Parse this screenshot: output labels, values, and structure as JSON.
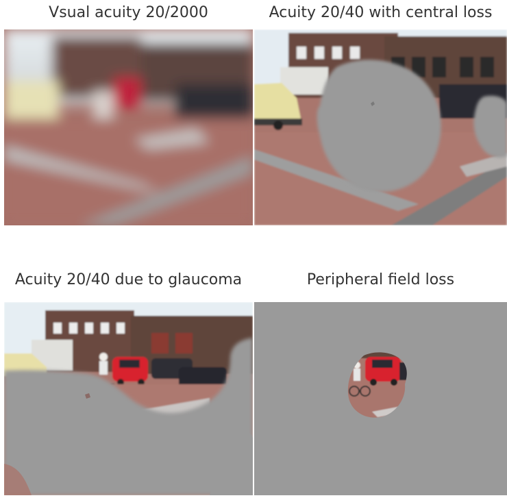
{
  "panels": [
    {
      "caption": "Vsual acuity 20/2000"
    },
    {
      "caption": "Acuity 20/40 with central loss"
    },
    {
      "caption": "Acuity 20/40 due to glaucoma"
    },
    {
      "caption": "Peripheral field loss"
    }
  ],
  "colors": {
    "scotoma_gray": "#9a9a9a",
    "sky": "#e6eef3",
    "brick": "#a8726a",
    "curb": "#b9b9b9",
    "building": "#6d4b40",
    "car_red": "#d8232f",
    "car_cream": "#e8e0a8"
  }
}
